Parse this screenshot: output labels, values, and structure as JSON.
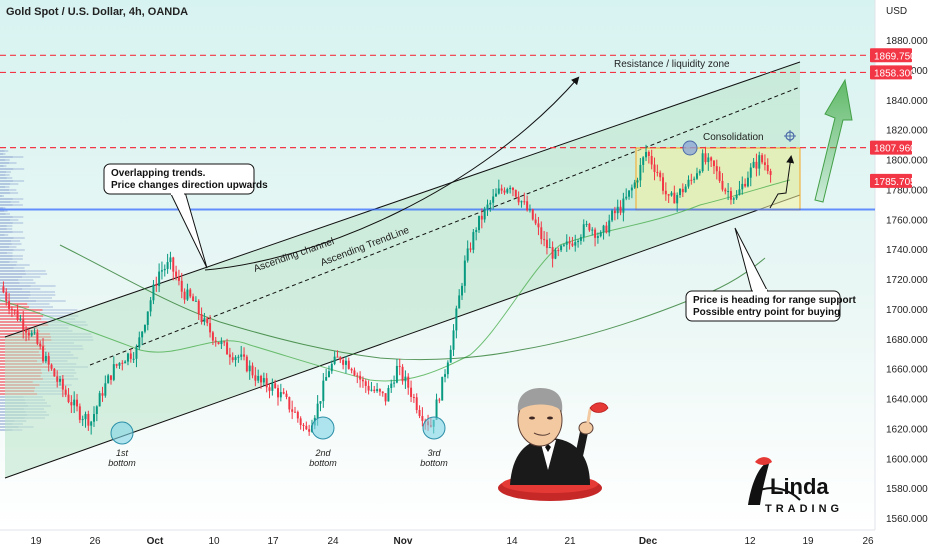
{
  "chart_data": {
    "type": "candlestick",
    "title": "Gold Spot / U.S. Dollar, 4h, OANDA",
    "currency_label": "USD",
    "ylim": [
      1550,
      1890
    ],
    "y_ticks": [
      "1880.000",
      "1860.000",
      "1840.000",
      "1820.000",
      "1800.000",
      "1780.000",
      "1760.000",
      "1740.000",
      "1720.000",
      "1700.000",
      "1680.000",
      "1660.000",
      "1640.000",
      "1620.000",
      "1600.000",
      "1580.000",
      "1560.000"
    ],
    "x_ticks": [
      "19",
      "26",
      "Oct",
      "10",
      "17",
      "24",
      "Nov",
      "14",
      "21",
      "Dec",
      "12",
      "19",
      "26"
    ],
    "price_badges": [
      {
        "label": "1869.750",
        "value": 1869.75,
        "color": "#f23645"
      },
      {
        "label": "1858.300",
        "value": 1858.3,
        "color": "#f23645"
      },
      {
        "label": "1807.960",
        "value": 1807.96,
        "color": "#f23645"
      },
      {
        "label": "1785.705",
        "value": 1785.705,
        "color": "#f23645"
      }
    ],
    "horizontal_levels": [
      {
        "value": 1869.75,
        "style": "dashed",
        "color": "#f23645"
      },
      {
        "value": 1858.3,
        "style": "dashed",
        "color": "#f23645"
      },
      {
        "value": 1807.96,
        "style": "dashed",
        "color": "#f23645"
      },
      {
        "value": 1766.5,
        "style": "solid",
        "color": "#2962ff"
      }
    ],
    "price_path": [
      1715,
      1700,
      1690,
      1680,
      1665,
      1652,
      1640,
      1630,
      1625,
      1645,
      1660,
      1668,
      1672,
      1700,
      1725,
      1730,
      1712,
      1705,
      1690,
      1680,
      1672,
      1668,
      1660,
      1650,
      1648,
      1640,
      1630,
      1618,
      1635,
      1660,
      1668,
      1662,
      1650,
      1645,
      1640,
      1660,
      1648,
      1632,
      1622,
      1650,
      1685,
      1730,
      1755,
      1768,
      1778,
      1784,
      1772,
      1760,
      1744,
      1735,
      1742,
      1750,
      1756,
      1748,
      1762,
      1770,
      1784,
      1805,
      1792,
      1772,
      1778,
      1786,
      1800,
      1794,
      1780,
      1775,
      1790,
      1800,
      1794
    ],
    "annotations": {
      "channel_label": "Ascending channel",
      "trendline_label": "Ascending TrendLine",
      "overlap_line1": "Overlapping trends.",
      "overlap_line2": "Price changes direction upwards",
      "consolidation": "Consolidation",
      "resistance": "Resistance / liquidity zone",
      "support_line1": "Price is heading for range support",
      "support_line2": "Possible entry point for buying",
      "bottoms": [
        {
          "num": "1st",
          "word": "bottom"
        },
        {
          "num": "2nd",
          "word": "bottom"
        },
        {
          "num": "3rd",
          "word": "bottom"
        }
      ]
    },
    "grid": false,
    "colors": {
      "up": "#089981",
      "down": "#f23645",
      "channel": "#b9e4c9",
      "range": "#f6f2a0",
      "ma_slow": "#4caf50",
      "arrow": "#4caf50"
    }
  },
  "logo": {
    "top": "Linda",
    "bottom": "TRADING"
  }
}
